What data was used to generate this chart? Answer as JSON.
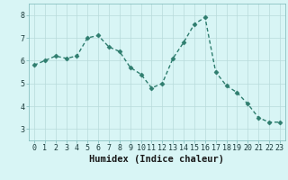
{
  "x": [
    0,
    1,
    2,
    3,
    4,
    5,
    6,
    7,
    8,
    9,
    10,
    11,
    12,
    13,
    14,
    15,
    16,
    17,
    18,
    19,
    20,
    21,
    22,
    23
  ],
  "y": [
    5.8,
    6.0,
    6.2,
    6.1,
    6.2,
    7.0,
    7.1,
    6.6,
    6.4,
    5.7,
    5.4,
    4.8,
    5.0,
    6.1,
    6.8,
    7.6,
    7.9,
    5.5,
    4.9,
    4.6,
    4.1,
    3.5,
    3.3,
    3.3
  ],
  "line_color": "#2e7d6e",
  "marker": "D",
  "marker_size": 2.5,
  "bg_color": "#d8f5f5",
  "grid_color": "#b8dada",
  "xlabel": "Humidex (Indice chaleur)",
  "ylim": [
    2.5,
    8.5
  ],
  "xlim": [
    -0.5,
    23.5
  ],
  "yticks": [
    3,
    4,
    5,
    6,
    7,
    8
  ],
  "xticks": [
    0,
    1,
    2,
    3,
    4,
    5,
    6,
    7,
    8,
    9,
    10,
    11,
    12,
    13,
    14,
    15,
    16,
    17,
    18,
    19,
    20,
    21,
    22,
    23
  ],
  "tick_label_fontsize": 6.0,
  "xlabel_fontsize": 7.5,
  "line_width": 1.0
}
